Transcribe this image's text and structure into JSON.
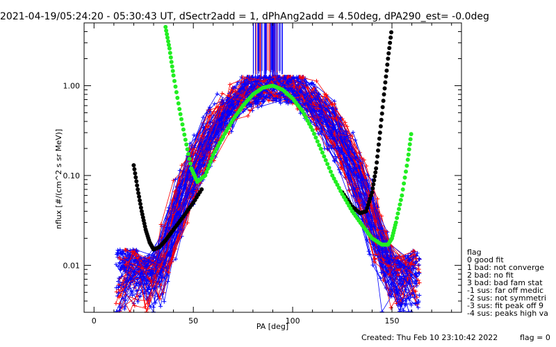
{
  "chart_data": {
    "type": "line",
    "title": "2021-04-19/05:24:20 - 05:30:43 UT, dSectr2add = 1, dPhAng2add = 4.50deg, dPA290_est=  -0.0deg",
    "xlabel": "PA [deg]",
    "ylabel": "nflux [#/(cm^2 s sr MeV)]",
    "xlim": [
      -5,
      185
    ],
    "ylim": [
      0.003,
      5.0
    ],
    "yscale": "log",
    "x_ticks": [
      0,
      50,
      100,
      150
    ],
    "x_tick_labels": [
      "0",
      "50",
      "100",
      "150"
    ],
    "y_ticks": [
      0.01,
      0.1,
      1.0
    ],
    "y_tick_labels": [
      "0.01",
      "0.10",
      "1.00"
    ],
    "series": [
      {
        "name": "fit curve (black)",
        "color": "#000000",
        "x": [
          20,
          22,
          24,
          26,
          28,
          30,
          33,
          36,
          40,
          45,
          50,
          55
        ],
        "y": [
          0.13,
          0.07,
          0.04,
          0.025,
          0.018,
          0.015,
          0.016,
          0.019,
          0.025,
          0.035,
          0.05,
          0.075
        ]
      },
      {
        "name": "fit curve right (black)",
        "color": "#000000",
        "x": [
          125,
          130,
          134,
          137,
          140,
          142,
          144,
          146,
          148,
          150
        ],
        "y": [
          0.065,
          0.045,
          0.038,
          0.04,
          0.065,
          0.12,
          0.3,
          0.8,
          2.0,
          4.5
        ]
      },
      {
        "name": "model curve (green)",
        "color": "#22ee22",
        "x": [
          36,
          38,
          40,
          43,
          46,
          49,
          52,
          56,
          60,
          65,
          70,
          75,
          80,
          85,
          90,
          95,
          100,
          105,
          110,
          115,
          120,
          125,
          130,
          135,
          140,
          145,
          148,
          150,
          152,
          155,
          158,
          160
        ],
        "y": [
          4.5,
          2.6,
          1.3,
          0.55,
          0.25,
          0.12,
          0.085,
          0.1,
          0.17,
          0.27,
          0.42,
          0.6,
          0.8,
          0.95,
          1.0,
          0.9,
          0.72,
          0.52,
          0.32,
          0.18,
          0.1,
          0.062,
          0.04,
          0.028,
          0.02,
          0.017,
          0.017,
          0.02,
          0.03,
          0.06,
          0.15,
          0.33
        ]
      }
    ],
    "scatter_series": [
      {
        "name": "red measurements",
        "color": "#ff0000"
      },
      {
        "name": "blue measurements",
        "color": "#0000ff"
      }
    ],
    "legend_title": "flag",
    "legend": [
      " 0 good fit",
      " 1 bad: not converge",
      " 2 bad: no fit",
      " 3 bad: bad fam stat",
      "-1 sus: far off medic",
      "-2 sus: not symmetri",
      "-3 sus: fit peak off 9",
      "-4 sus: peaks high va"
    ]
  },
  "footer": {
    "created": "Created: Thu Feb 10 23:10:42 2022",
    "flag": "flag = 0"
  }
}
